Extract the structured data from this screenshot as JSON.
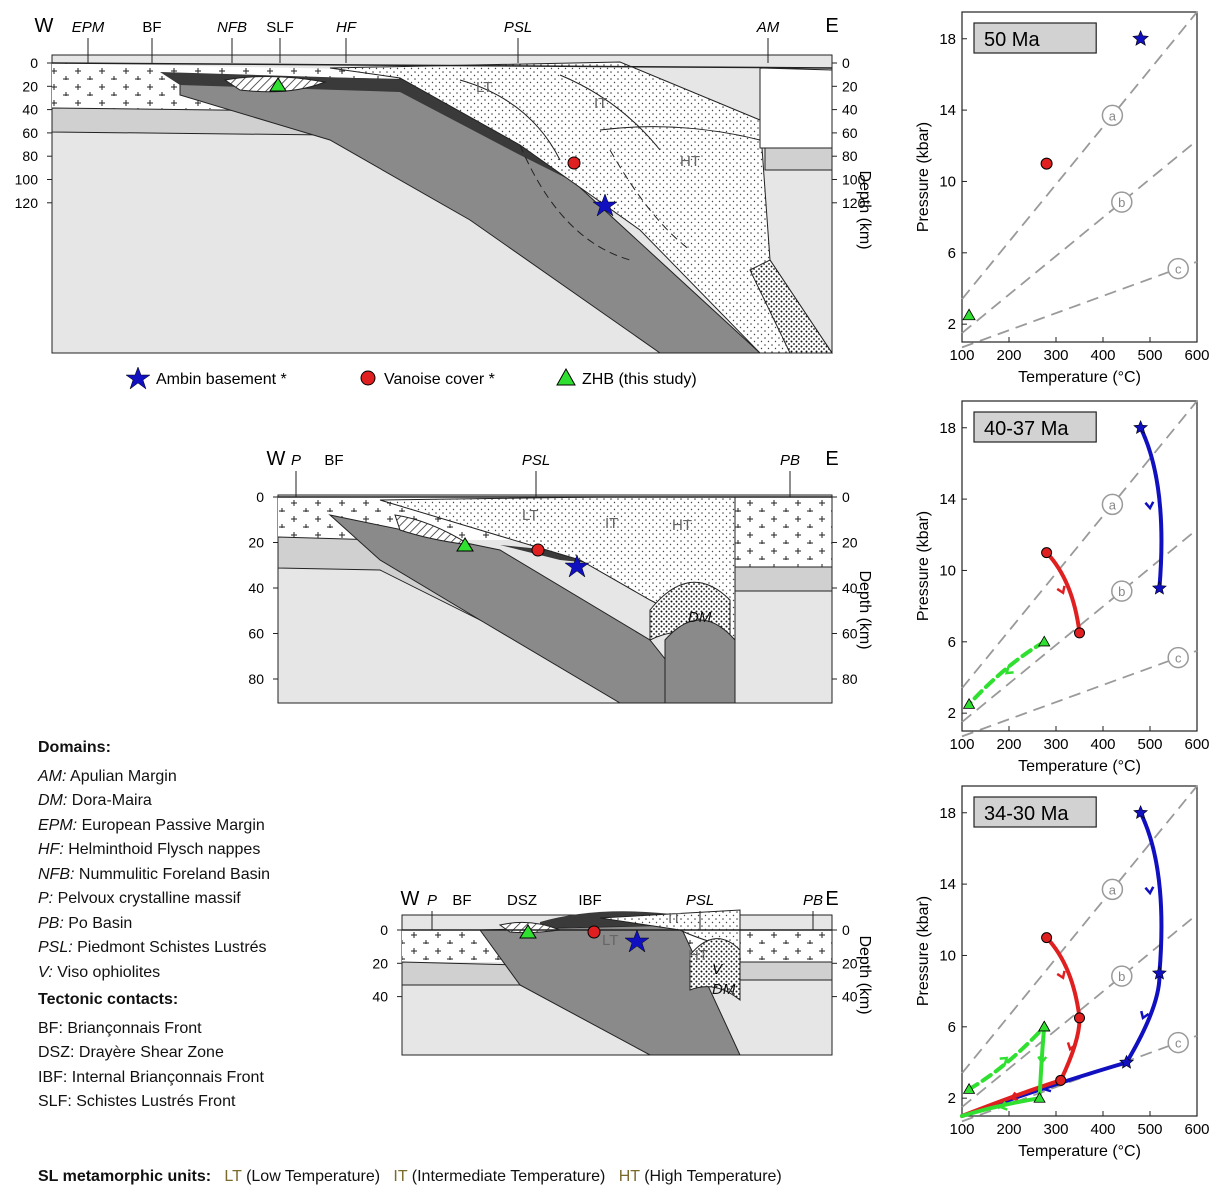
{
  "sections": [
    {
      "age": "50 Ma",
      "ticks": [
        "0",
        "20",
        "40",
        "60",
        "80",
        "100",
        "120"
      ],
      "top_labels": [
        "W",
        "EPM",
        "BF",
        "NFB",
        "SLF",
        "HF",
        "PSL",
        "AM",
        "E"
      ],
      "units": [
        "LT",
        "IT",
        "HT"
      ]
    },
    {
      "age": "40-37 Ma",
      "ticks": [
        "0",
        "20",
        "40",
        "60",
        "80"
      ],
      "top_labels": [
        "W",
        "P",
        "BF",
        "PSL",
        "PB",
        "E"
      ],
      "units": [
        "LT",
        "IT",
        "HT",
        "DM"
      ]
    },
    {
      "age": "34-30 Ma",
      "ticks": [
        "0",
        "20",
        "40"
      ],
      "top_labels": [
        "W",
        "P",
        "BF",
        "DSZ",
        "IBF",
        "PSL",
        "PB",
        "E"
      ],
      "units": [
        "LT",
        "IT",
        "HT",
        "V",
        "DM"
      ]
    }
  ],
  "depth_axis_label": "Depth (km)",
  "markers": {
    "ambin": "Ambin basement *",
    "vanoise": "Vanoise cover *",
    "zhb": "ZHB (this study)"
  },
  "pt": {
    "xlabel": "Temperature (°C)",
    "ylabel": "Pressure (kbar)",
    "xticks": [
      "100",
      "200",
      "300",
      "400",
      "500",
      "600"
    ],
    "yticks": [
      "2",
      "6",
      "10",
      "14",
      "18"
    ],
    "gradients": [
      "a",
      "b",
      "c"
    ]
  },
  "chart_data": [
    {
      "type": "scatter",
      "title": "50 Ma",
      "xlabel": "Temperature (°C)",
      "ylabel": "Pressure (kbar)",
      "xlim": [
        100,
        600
      ],
      "ylim": [
        1,
        19.5
      ],
      "series": [
        {
          "name": "Ambin basement *",
          "marker": "star",
          "color": "#1010c0",
          "points": [
            [
              480,
              18
            ]
          ]
        },
        {
          "name": "Vanoise cover *",
          "marker": "circle",
          "color": "#e02020",
          "points": [
            [
              280,
              11
            ]
          ]
        },
        {
          "name": "ZHB (this study)",
          "marker": "triangle",
          "color": "#30e030",
          "points": [
            [
              115,
              2.5
            ]
          ]
        }
      ],
      "gradients": [
        {
          "name": "a",
          "from": [
            100,
            3.4
          ],
          "to": [
            600,
            19.5
          ]
        },
        {
          "name": "b",
          "from": [
            100,
            1.5
          ],
          "to": [
            600,
            12.3
          ]
        },
        {
          "name": "c",
          "from": [
            100,
            0.7
          ],
          "to": [
            600,
            5.5
          ]
        }
      ]
    },
    {
      "type": "line",
      "title": "40-37 Ma",
      "xlabel": "Temperature (°C)",
      "ylabel": "Pressure (kbar)",
      "xlim": [
        100,
        600
      ],
      "ylim": [
        1,
        19.5
      ],
      "series": [
        {
          "name": "Ambin basement *",
          "color": "#1010c0",
          "dashed": false,
          "points": [
            [
              480,
              18
            ],
            [
              520,
              9
            ]
          ]
        },
        {
          "name": "Vanoise cover *",
          "color": "#e02020",
          "dashed": false,
          "points": [
            [
              280,
              11
            ],
            [
              350,
              6.5
            ]
          ]
        },
        {
          "name": "ZHB (this study)",
          "color": "#30e030",
          "dashed": true,
          "points": [
            [
              275,
              6
            ],
            [
              115,
              2.5
            ]
          ]
        }
      ]
    },
    {
      "type": "line",
      "title": "34-30 Ma",
      "xlabel": "Temperature (°C)",
      "ylabel": "Pressure (kbar)",
      "xlim": [
        100,
        600
      ],
      "ylim": [
        1,
        19.5
      ],
      "series": [
        {
          "name": "Ambin basement *",
          "color": "#1010c0",
          "dashed": false,
          "points": [
            [
              480,
              18
            ],
            [
              520,
              9
            ],
            [
              450,
              4
            ],
            [
              100,
              1
            ]
          ]
        },
        {
          "name": "Vanoise cover *",
          "color": "#e02020",
          "dashed": false,
          "points": [
            [
              280,
              11
            ],
            [
              350,
              6.5
            ],
            [
              310,
              3
            ],
            [
              100,
              1
            ]
          ]
        },
        {
          "name": "ZHB (this study) prograde",
          "color": "#30e030",
          "dashed": true,
          "points": [
            [
              115,
              2.5
            ],
            [
              275,
              6
            ]
          ]
        },
        {
          "name": "ZHB (this study)",
          "color": "#30e030",
          "dashed": false,
          "points": [
            [
              275,
              6
            ],
            [
              265,
              2
            ],
            [
              100,
              1
            ]
          ]
        }
      ]
    }
  ],
  "domains": {
    "heading": "Domains:",
    "items": [
      {
        "k": "AM:",
        "v": "Apulian Margin"
      },
      {
        "k": "DM:",
        "v": "Dora-Maira"
      },
      {
        "k": "EPM:",
        "v": "European Passive Margin"
      },
      {
        "k": "HF:",
        "v": "Helminthoid Flysch nappes"
      },
      {
        "k": "NFB:",
        "v": "Nummulitic Foreland Basin"
      },
      {
        "k": "P:",
        "v": "Pelvoux crystalline massif"
      },
      {
        "k": "PB:",
        "v": "Po Basin"
      },
      {
        "k": "PSL:",
        "v": "Piedmont Schistes Lustrés"
      },
      {
        "k": "V:",
        "v": "Viso ophiolites"
      }
    ]
  },
  "contacts": {
    "heading": "Tectonic contacts:",
    "items": [
      "BF: Briançonnais Front",
      "DSZ: Drayère Shear Zone",
      "IBF: Internal Briançonnais Front",
      "SLF: Schistes Lustrés Front"
    ]
  },
  "units_line": {
    "heading": "SL metamorphic units:",
    "lt": "LT",
    "lt_txt": "(Low Temperature)",
    "it": "IT",
    "it_txt": "(Intermediate Temperature)",
    "ht": "HT",
    "ht_txt": "(High Temperature)"
  }
}
